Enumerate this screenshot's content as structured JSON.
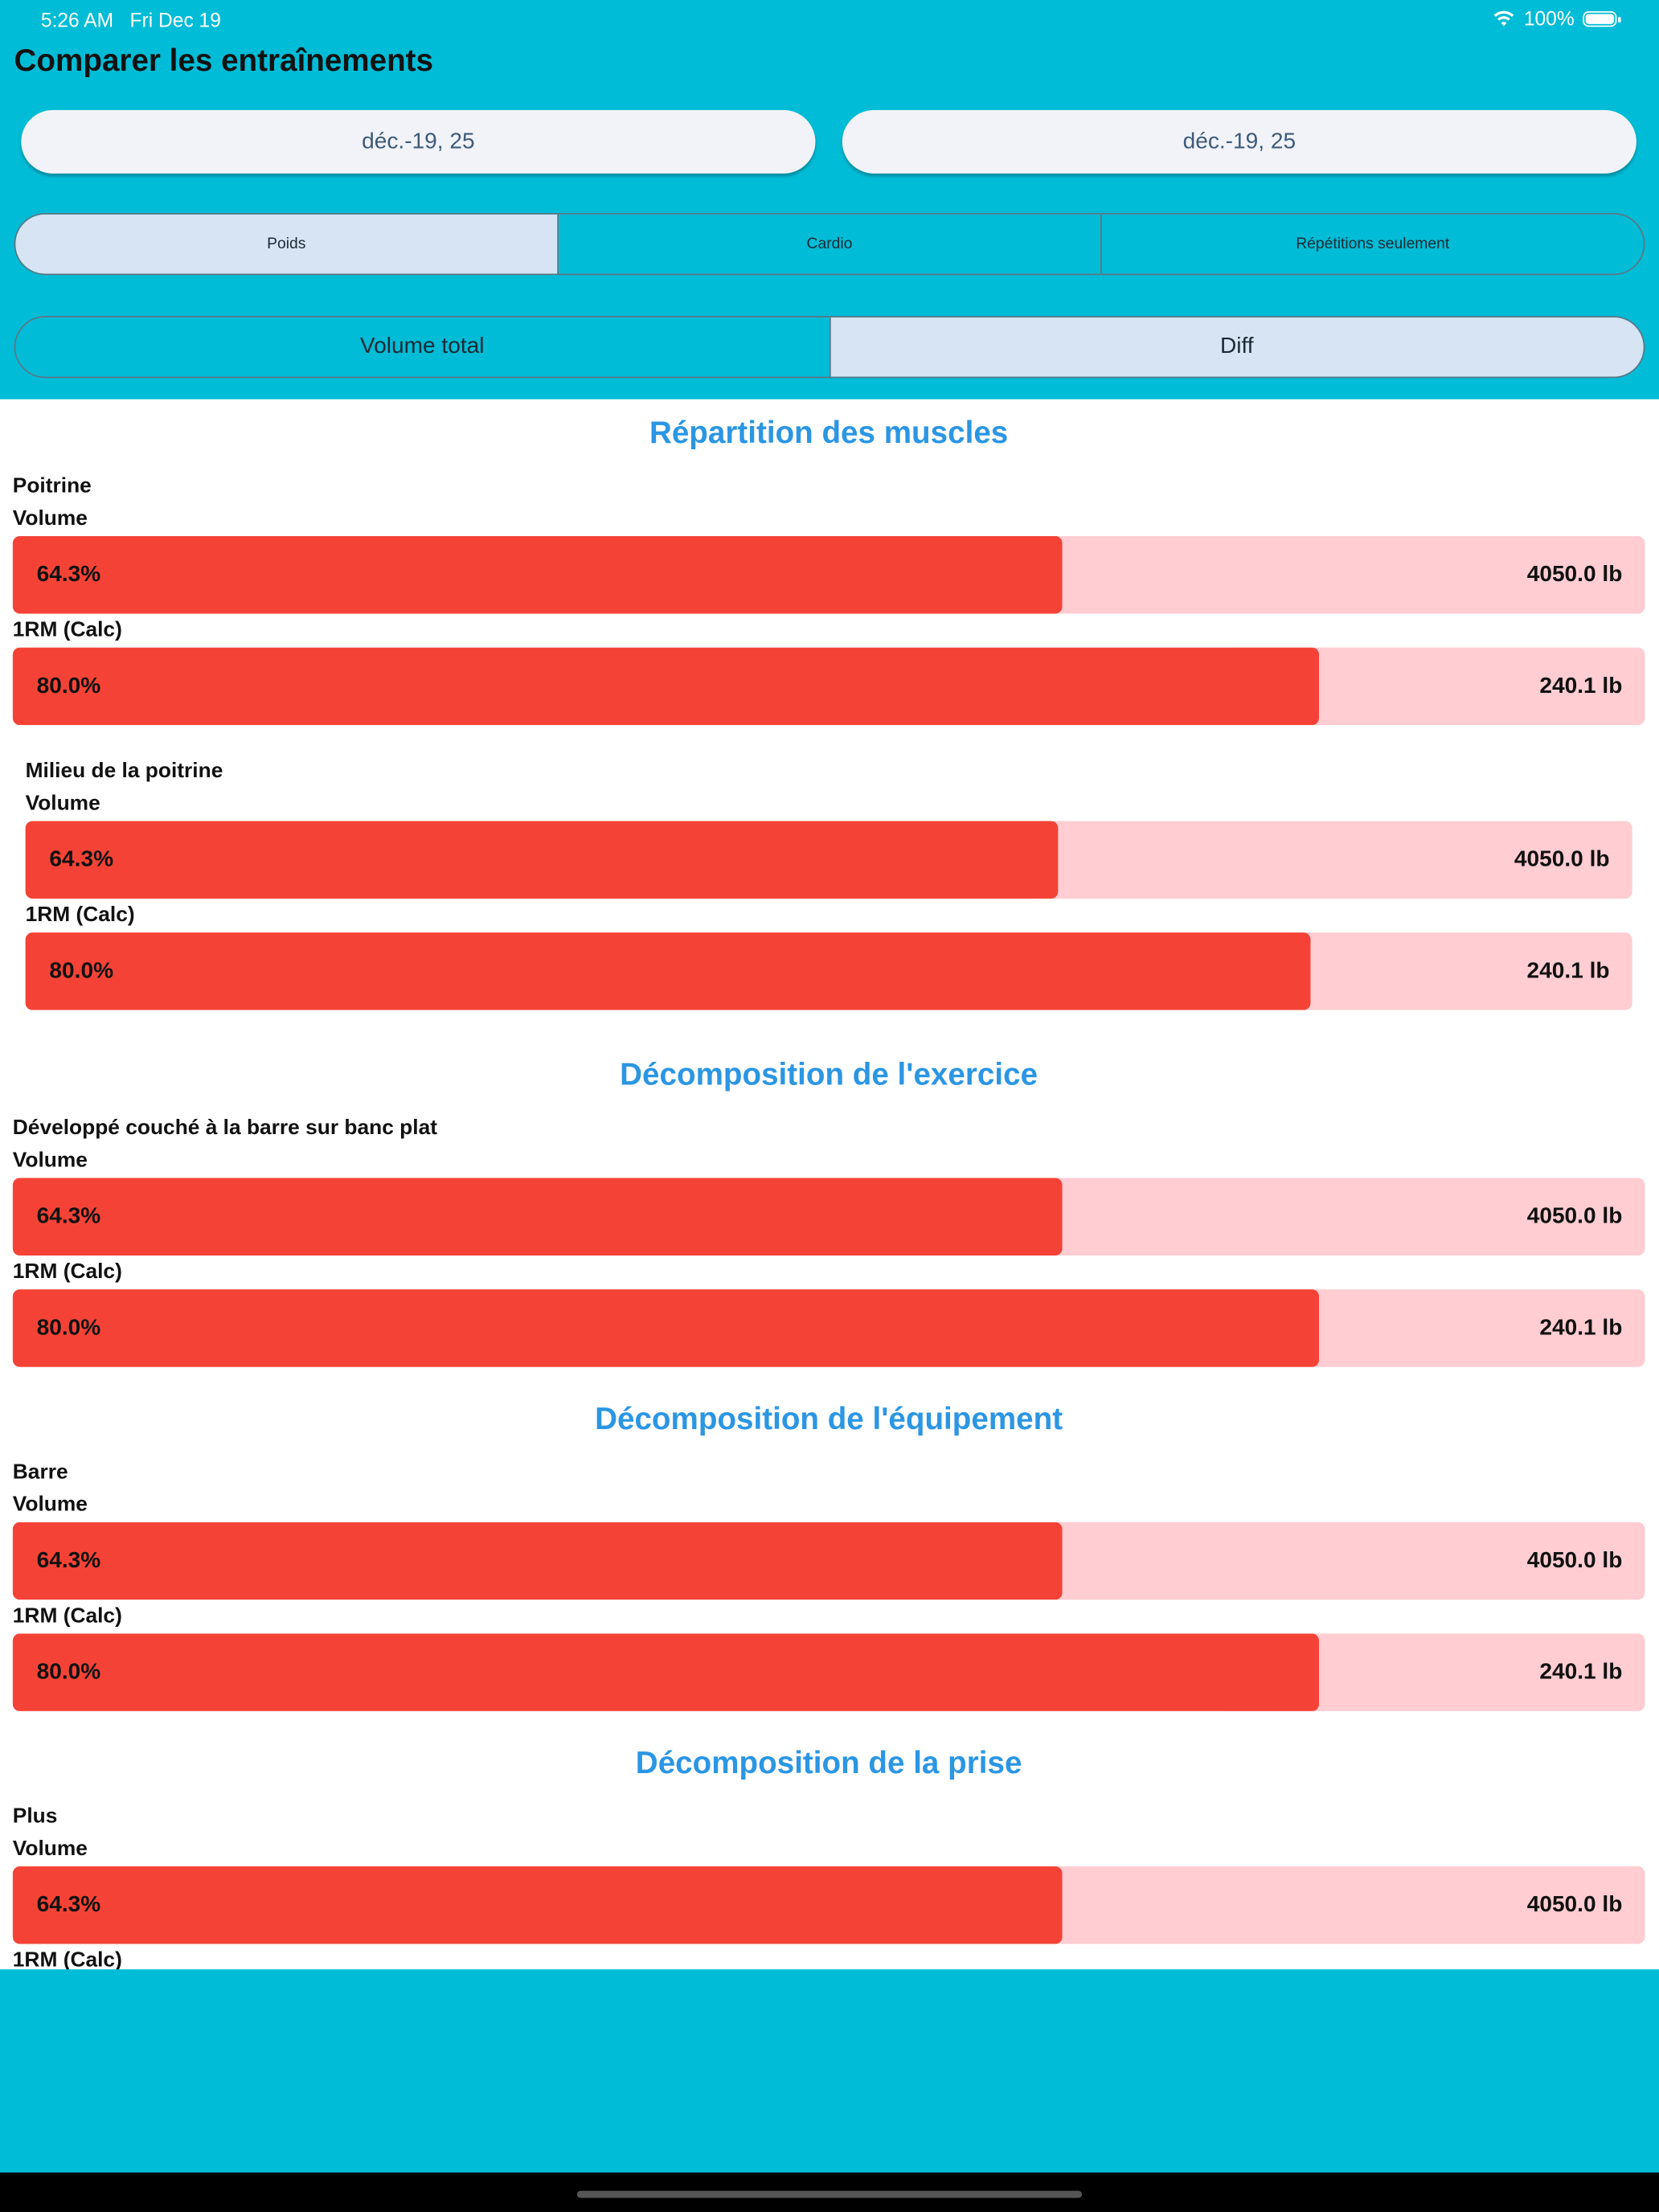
{
  "status_bar": {
    "time": "5:26 AM",
    "date": "Fri Dec 19",
    "battery": "100%",
    "icons": [
      "wifi-icon",
      "battery-icon"
    ]
  },
  "header": {
    "title": "Comparer les entraînements"
  },
  "dates": {
    "left": "déc.-19, 25",
    "right": "déc.-19, 25"
  },
  "type_tabs": [
    {
      "label": "Poids",
      "selected": true
    },
    {
      "label": "Cardio",
      "selected": false
    },
    {
      "label": "Répétitions seulement",
      "selected": false
    }
  ],
  "mode_tabs": [
    {
      "label": "Volume total",
      "selected": false
    },
    {
      "label": "Diff",
      "selected": true
    }
  ],
  "colors": {
    "accent": "#00bcd6",
    "section_title": "#2b96e3",
    "bar_fill": "#f44336",
    "bar_track": "#ffcdd2"
  },
  "sections": [
    {
      "title": "Répartition des muscles",
      "groups": [
        {
          "name": "Poitrine",
          "sub": false,
          "metrics": [
            {
              "label": "Volume",
              "percent": "64.3%",
              "fraction": 0.643,
              "value": "4050.0 lb"
            },
            {
              "label": "1RM (Calc)",
              "percent": "80.0%",
              "fraction": 0.8,
              "value": "240.1 lb"
            }
          ]
        },
        {
          "name": "Milieu de la poitrine",
          "sub": true,
          "metrics": [
            {
              "label": "Volume",
              "percent": "64.3%",
              "fraction": 0.643,
              "value": "4050.0 lb"
            },
            {
              "label": "1RM (Calc)",
              "percent": "80.0%",
              "fraction": 0.8,
              "value": "240.1 lb"
            }
          ]
        }
      ]
    },
    {
      "title": "Décomposition de l'exercice",
      "groups": [
        {
          "name": "Développé couché à la barre sur banc plat",
          "sub": false,
          "metrics": [
            {
              "label": "Volume",
              "percent": "64.3%",
              "fraction": 0.643,
              "value": "4050.0 lb"
            },
            {
              "label": "1RM (Calc)",
              "percent": "80.0%",
              "fraction": 0.8,
              "value": "240.1 lb"
            }
          ]
        }
      ]
    },
    {
      "title": "Décomposition de l'équipement",
      "groups": [
        {
          "name": "Barre",
          "sub": false,
          "metrics": [
            {
              "label": "Volume",
              "percent": "64.3%",
              "fraction": 0.643,
              "value": "4050.0 lb"
            },
            {
              "label": "1RM (Calc)",
              "percent": "80.0%",
              "fraction": 0.8,
              "value": "240.1 lb"
            }
          ]
        }
      ]
    },
    {
      "title": "Décomposition de la prise",
      "groups": [
        {
          "name": "Plus",
          "sub": false,
          "metrics": [
            {
              "label": "Volume",
              "percent": "64.3%",
              "fraction": 0.643,
              "value": "4050.0 lb"
            },
            {
              "label": "1RM (Calc)",
              "percent": "",
              "fraction": null,
              "value": ""
            }
          ]
        }
      ]
    }
  ]
}
